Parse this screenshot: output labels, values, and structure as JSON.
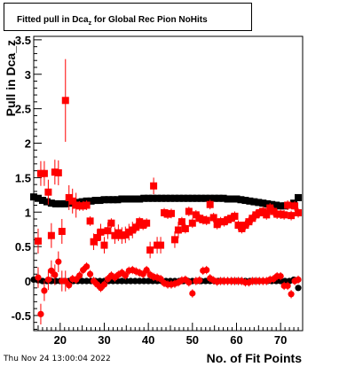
{
  "title": {
    "prefix": "Fitted pull in Dca",
    "subscript": "z",
    "suffix": " for Global Rec Pion NoHits"
  },
  "footer": {
    "date": "Thu Nov 24 13:00:04 2022"
  },
  "chart_data": {
    "type": "scatter",
    "title": "Fitted pull in Dca_z for Global Rec Pion NoHits",
    "xlabel": "No. of Fit Points",
    "ylabel": "Pull in Dca_z",
    "xlim": [
      14,
      75
    ],
    "ylim": [
      -0.72,
      3.55
    ],
    "xticks": [
      20,
      30,
      40,
      50,
      60,
      70
    ],
    "yticks": [
      -0.5,
      0,
      0.5,
      1,
      1.5,
      2,
      2.5,
      3,
      3.5
    ],
    "ytick_labels": [
      "-0.5",
      "0",
      "0.5",
      "1",
      "1.5",
      "2",
      "2.5",
      "3",
      "3.5"
    ],
    "grid": false,
    "legend": "none",
    "colors": {
      "sigma": "#000000",
      "sigma_rec": "#ff0000",
      "mean": "#000000",
      "mean_rec": "#ff0000"
    },
    "series": [
      {
        "marker": "square",
        "x": [
          14,
          15,
          16,
          17,
          18,
          19,
          20,
          21,
          22,
          23,
          24,
          25,
          26,
          27,
          28,
          29,
          30,
          31,
          32,
          33,
          34,
          35,
          36,
          37,
          38,
          39,
          40,
          41,
          42,
          43,
          44,
          45,
          46,
          47,
          48,
          49,
          50,
          51,
          52,
          53,
          54,
          55,
          56,
          57,
          58,
          59,
          60,
          61,
          62,
          63,
          64,
          65,
          66,
          67,
          68,
          69,
          70,
          71,
          72,
          73,
          74
        ],
        "y": [
          1.22,
          1.2,
          1.17,
          1.15,
          1.13,
          1.12,
          1.12,
          1.12,
          1.13,
          1.14,
          1.14,
          1.15,
          1.16,
          1.16,
          1.17,
          1.17,
          1.18,
          1.18,
          1.18,
          1.18,
          1.19,
          1.19,
          1.19,
          1.19,
          1.19,
          1.2,
          1.2,
          1.2,
          1.2,
          1.2,
          1.2,
          1.2,
          1.2,
          1.2,
          1.2,
          1.2,
          1.2,
          1.2,
          1.2,
          1.2,
          1.2,
          1.2,
          1.2,
          1.2,
          1.19,
          1.19,
          1.19,
          1.18,
          1.17,
          1.16,
          1.15,
          1.14,
          1.13,
          1.12,
          1.11,
          1.1,
          1.09,
          1.09,
          1.1,
          1.13,
          1.21
        ]
      },
      {
        "marker": "square",
        "x": [
          15,
          15.6,
          16.4,
          17.3,
          18.0,
          18.8,
          19.6,
          20.4,
          21.2,
          22.0,
          22.8,
          23.6,
          24.4,
          25.2,
          26.0,
          26.8,
          27.6,
          28.4,
          29.2,
          30.0,
          30.8,
          31.6,
          32.4,
          33.2,
          34.0,
          34.8,
          35.6,
          36.4,
          37.2,
          38.0,
          38.8,
          39.6,
          40.4,
          41.2,
          42.0,
          42.8,
          43.6,
          44.4,
          45.2,
          46.0,
          46.8,
          47.6,
          48.4,
          49.2,
          50.0,
          50.8,
          51.6,
          52.4,
          53.2,
          54.0,
          54.8,
          55.6,
          56.4,
          57.2,
          58.0,
          58.8,
          59.6,
          60.4,
          61.2,
          62.0,
          62.8,
          63.6,
          64.4,
          65.2,
          66.0,
          66.8,
          67.6,
          68.4,
          69.2,
          70.0,
          70.8,
          71.6,
          72.4,
          73.2,
          74.0
        ],
        "y": [
          0.58,
          1.56,
          1.56,
          1.29,
          0.66,
          1.58,
          1.57,
          0.72,
          2.62,
          1.21,
          1.16,
          1.1,
          1.09,
          1.09,
          1.1,
          0.87,
          0.57,
          0.63,
          0.71,
          0.52,
          0.73,
          0.84,
          0.66,
          0.7,
          0.66,
          0.67,
          0.71,
          0.74,
          0.78,
          0.86,
          0.81,
          0.84,
          0.45,
          1.38,
          0.52,
          0.52,
          0.99,
          0.97,
          0.98,
          0.6,
          0.74,
          0.86,
          0.76,
          1.01,
          0.84,
          0.96,
          0.91,
          0.89,
          0.88,
          1.11,
          0.92,
          0.82,
          0.86,
          0.86,
          0.89,
          0.91,
          0.94,
          0.81,
          0.76,
          0.81,
          0.86,
          0.91,
          0.96,
          0.99,
          1.01,
          0.96,
          1.06,
          1.01,
          0.97,
          0.97,
          0.96,
          1.1,
          0.95,
          1.09,
          0.99
        ]
      },
      {
        "marker": "circle",
        "x": [
          14,
          15,
          16,
          17,
          18,
          19,
          20,
          21,
          22,
          23,
          24,
          25,
          26,
          27,
          28,
          29,
          30,
          31,
          32,
          33,
          34,
          35,
          36,
          37,
          38,
          39,
          40,
          41,
          42,
          43,
          44,
          45,
          46,
          47,
          48,
          49,
          50,
          51,
          52,
          53,
          54,
          55,
          56,
          57,
          58,
          59,
          60,
          61,
          62,
          63,
          64,
          65,
          66,
          67,
          68,
          69,
          70,
          71,
          72,
          73,
          74
        ],
        "y": [
          0.02,
          0.01,
          0.0,
          0.0,
          0.0,
          0.0,
          0.0,
          0.0,
          0.0,
          0.0,
          0.0,
          0.0,
          0.0,
          0.0,
          0.0,
          0.0,
          0.0,
          0.0,
          0.0,
          0.0,
          0.0,
          0.0,
          0.0,
          0.0,
          0.0,
          0.0,
          0.0,
          0.0,
          0.0,
          0.0,
          0.0,
          0.0,
          0.0,
          0.0,
          0.0,
          0.0,
          0.0,
          0.0,
          0.0,
          0.0,
          0.0,
          0.0,
          0.0,
          0.0,
          0.0,
          0.0,
          0.0,
          0.0,
          0.0,
          0.0,
          0.0,
          0.0,
          0.0,
          0.0,
          0.0,
          0.0,
          0.0,
          0.0,
          0.0,
          0.02,
          -0.1
        ]
      },
      {
        "marker": "circle",
        "x": [
          15,
          15.6,
          16.4,
          17.3,
          18.0,
          18.8,
          19.6,
          20.4,
          21.2,
          22.0,
          22.8,
          23.6,
          24.4,
          25.2,
          26.0,
          26.8,
          27.6,
          28.4,
          29.2,
          30.0,
          30.8,
          31.6,
          32.4,
          33.2,
          34.0,
          34.8,
          35.6,
          36.4,
          37.2,
          38.0,
          38.8,
          39.6,
          40.4,
          41.2,
          42.0,
          42.8,
          43.6,
          44.4,
          45.2,
          46.0,
          46.8,
          47.6,
          48.4,
          49.2,
          50.0,
          50.8,
          51.6,
          52.4,
          53.2,
          54.0,
          54.8,
          55.6,
          56.4,
          57.2,
          58.0,
          58.8,
          59.6,
          60.4,
          61.2,
          62.0,
          62.8,
          63.6,
          64.4,
          65.2,
          66.0,
          66.8,
          67.6,
          68.4,
          69.2,
          70.0,
          70.8,
          71.6,
          72.4,
          73.2,
          74.0
        ],
        "y": [
          0.05,
          -0.48,
          -0.14,
          0.02,
          0.15,
          0.09,
          0.28,
          0.0,
          0.0,
          -0.06,
          0.03,
          0.02,
          0.08,
          0.16,
          0.21,
          0.1,
          0.0,
          -0.05,
          -0.1,
          -0.05,
          0.03,
          0.08,
          0.05,
          0.09,
          0.12,
          0.08,
          0.15,
          0.16,
          0.14,
          0.12,
          0.1,
          0.16,
          0.09,
          0.06,
          0.05,
          0.03,
          -0.03,
          -0.05,
          -0.05,
          -0.04,
          -0.02,
          0.01,
          0.02,
          -0.02,
          -0.18,
          0.0,
          0.01,
          0.15,
          0.16,
          0.04,
          0.01,
          -0.01,
          0.0,
          0.0,
          0.0,
          0.0,
          0.0,
          0.0,
          0.0,
          -0.02,
          -0.02,
          0.0,
          0.0,
          0.0,
          0.0,
          0.0,
          0.02,
          0.03,
          0.07,
          0.07,
          -0.07,
          -0.07,
          -0.19,
          0.0,
          0.02
        ]
      }
    ]
  }
}
